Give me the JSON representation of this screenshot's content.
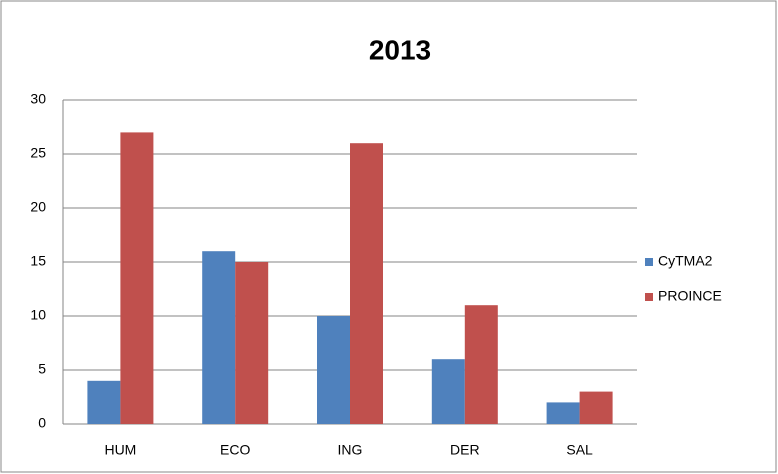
{
  "chart_data": {
    "type": "bar",
    "title": "2013",
    "categories": [
      "HUM",
      "ECO",
      "ING",
      "DER",
      "SAL"
    ],
    "series": [
      {
        "name": "CyTMA2",
        "color": "#4f81bd",
        "values": [
          4,
          16,
          10,
          6,
          2
        ]
      },
      {
        "name": "PROINCE",
        "color": "#c0504d",
        "values": [
          27,
          15,
          26,
          11,
          3
        ]
      }
    ],
    "ylim": [
      0,
      30
    ],
    "yticks": [
      0,
      5,
      10,
      15,
      20,
      25,
      30
    ],
    "grid": true,
    "legend": "right"
  }
}
